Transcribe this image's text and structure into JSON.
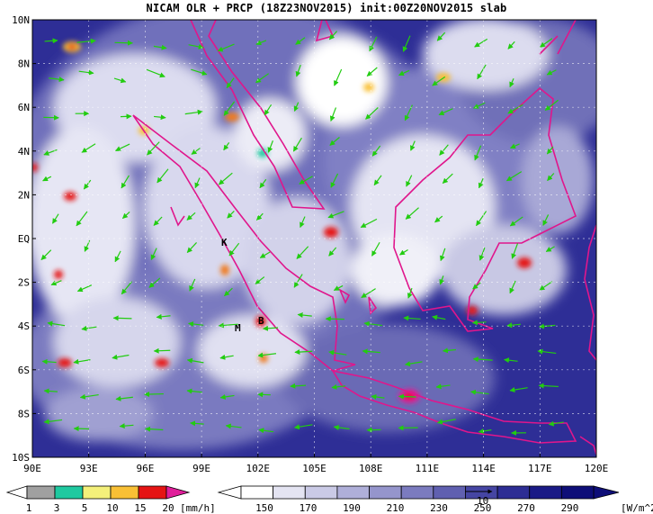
{
  "title": "NICAM OLR + PRCP (18Z23NOV2015) init:00Z20NOV2015 slab",
  "lat_labels": [
    "10N",
    "8N",
    "6N",
    "4N",
    "2N",
    "EQ",
    "2S",
    "4S",
    "6S",
    "8S",
    "10S"
  ],
  "lon_labels": [
    "90E",
    "93E",
    "96E",
    "99E",
    "102E",
    "105E",
    "108E",
    "111E",
    "114E",
    "117E",
    "120E"
  ],
  "map_extent": {
    "lon_min": 90,
    "lon_max": 120,
    "lat_min": -10,
    "lat_max": 10
  },
  "station_markers": [
    {
      "label": "K",
      "lon": 100.5,
      "lat": -0.2
    },
    {
      "label": "B",
      "lon": 102.3,
      "lat": -3.8
    },
    {
      "label": "M",
      "lon": 101.2,
      "lat": -4.0
    }
  ],
  "prcp_colorbar": {
    "ticks": [
      "1",
      "3",
      "5",
      "10",
      "15",
      "20"
    ],
    "unit": "[mm/h]",
    "colors": [
      "#a0a0a0",
      "#1fc9a0",
      "#f4f07a",
      "#f9c035",
      "#f07a1a",
      "#e51414",
      "#e01e9a"
    ]
  },
  "olr_colorbar": {
    "ticks": [
      "150",
      "170",
      "190",
      "210",
      "230",
      "250",
      "270",
      "290"
    ],
    "unit": "[W/m^2]",
    "colors": [
      "#ffffff",
      "#e4e4f2",
      "#cacae6",
      "#afafd9",
      "#9595cc",
      "#7b7bbf",
      "#6060b0",
      "#4545a3",
      "#2d2d94",
      "#1a1a86",
      "#0e0e78"
    ]
  },
  "vector_legend": {
    "label": "10"
  },
  "colors": {
    "coast": "#e0168c",
    "wind": "#22cc11"
  }
}
